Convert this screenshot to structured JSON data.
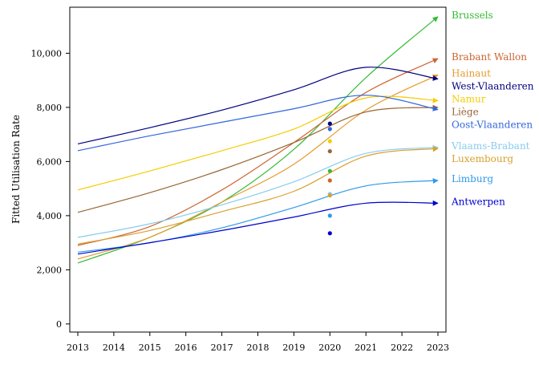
{
  "chart_data": {
    "type": "line",
    "ylabel": "Fitted Utilisation Rate",
    "xlabel": "",
    "xlim": [
      2013,
      2023
    ],
    "ylim": [
      -300,
      11700
    ],
    "x_ticks": [
      2013,
      2014,
      2015,
      2016,
      2017,
      2018,
      2019,
      2020,
      2021,
      2022,
      2023
    ],
    "y_ticks": [
      0,
      2000,
      4000,
      6000,
      8000,
      10000
    ],
    "y_tick_labels": [
      "0",
      "2,000",
      "4,000",
      "6,000",
      "8,000",
      "10,000"
    ],
    "grid": false,
    "legend": "right, labels at line ends",
    "series": [
      {
        "name": "Brussels",
        "color": "#33bb33",
        "fit": [
          [
            2013,
            2250
          ],
          [
            2015,
            3200
          ],
          [
            2017,
            4500
          ],
          [
            2019,
            6450
          ],
          [
            2021,
            9100
          ],
          [
            2023,
            11350
          ]
        ],
        "observed_2020": 5650
      },
      {
        "name": "Brabant Wallon",
        "color": "#cc6633",
        "fit": [
          [
            2013,
            2900
          ],
          [
            2015,
            3600
          ],
          [
            2017,
            4950
          ],
          [
            2019,
            6700
          ],
          [
            2021,
            8550
          ],
          [
            2023,
            9800
          ]
        ],
        "observed_2020": 5300
      },
      {
        "name": "Hainaut",
        "color": "#e69a2e",
        "fit": [
          [
            2013,
            2400
          ],
          [
            2015,
            3200
          ],
          [
            2017,
            4500
          ],
          [
            2019,
            5900
          ],
          [
            2021,
            7900
          ],
          [
            2023,
            9200
          ]
        ],
        "observed_2020": 4750
      },
      {
        "name": "West-Vlaanderen",
        "color": "#000080",
        "fit": [
          [
            2013,
            6650
          ],
          [
            2015,
            7250
          ],
          [
            2017,
            7900
          ],
          [
            2019,
            8650
          ],
          [
            2021,
            9480
          ],
          [
            2023,
            9050
          ]
        ],
        "observed_2020": 7400
      },
      {
        "name": "Namur",
        "color": "#f5cc00",
        "fit": [
          [
            2013,
            4950
          ],
          [
            2015,
            5650
          ],
          [
            2017,
            6400
          ],
          [
            2019,
            7200
          ],
          [
            2021,
            8350
          ],
          [
            2023,
            8250
          ]
        ],
        "observed_2020": 6750
      },
      {
        "name": "Liège",
        "color": "#996633",
        "fit": [
          [
            2013,
            4120
          ],
          [
            2015,
            4850
          ],
          [
            2017,
            5700
          ],
          [
            2019,
            6700
          ],
          [
            2021,
            7830
          ],
          [
            2023,
            8000
          ]
        ],
        "observed_2020": 6380
      },
      {
        "name": "Oost-Vlaanderen",
        "color": "#3366dd",
        "fit": [
          [
            2013,
            6400
          ],
          [
            2015,
            6950
          ],
          [
            2017,
            7450
          ],
          [
            2019,
            7950
          ],
          [
            2021,
            8450
          ],
          [
            2023,
            7920
          ]
        ],
        "observed_2020": 7200
      },
      {
        "name": "Vlaams-Brabant",
        "color": "#88ccee",
        "fit": [
          [
            2013,
            3200
          ],
          [
            2015,
            3700
          ],
          [
            2017,
            4400
          ],
          [
            2019,
            5250
          ],
          [
            2021,
            6300
          ],
          [
            2023,
            6520
          ]
        ],
        "observed_2020": 4800
      },
      {
        "name": "Luxembourg",
        "color": "#d9a030",
        "fit": [
          [
            2013,
            2950
          ],
          [
            2015,
            3450
          ],
          [
            2017,
            4150
          ],
          [
            2019,
            4900
          ],
          [
            2021,
            6200
          ],
          [
            2023,
            6480
          ]
        ],
        "observed_2020": 4750
      },
      {
        "name": "Limburg",
        "color": "#2f9ae8",
        "fit": [
          [
            2013,
            2650
          ],
          [
            2015,
            3000
          ],
          [
            2017,
            3550
          ],
          [
            2019,
            4300
          ],
          [
            2021,
            5100
          ],
          [
            2023,
            5300
          ]
        ],
        "observed_2020": 4000
      },
      {
        "name": "Antwerpen",
        "color": "#0000cc",
        "fit": [
          [
            2013,
            2580
          ],
          [
            2015,
            3000
          ],
          [
            2017,
            3450
          ],
          [
            2019,
            3950
          ],
          [
            2021,
            4460
          ],
          [
            2023,
            4460
          ]
        ],
        "observed_2020": 3350
      }
    ]
  }
}
